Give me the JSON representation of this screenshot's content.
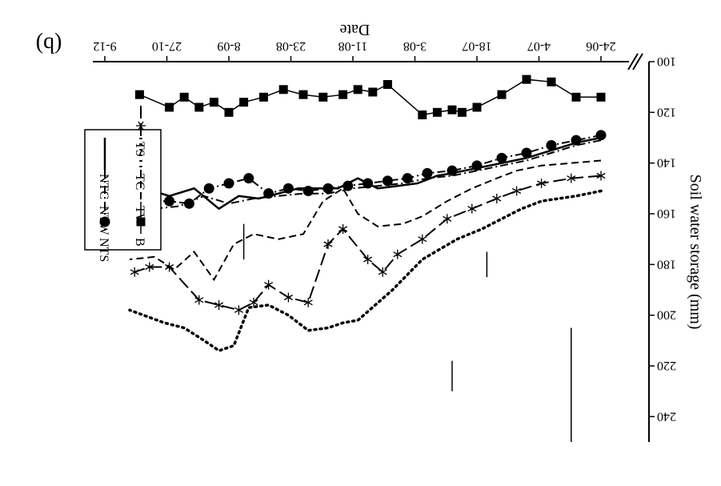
{
  "chart_data": {
    "type": "line",
    "title": "",
    "panel_label": "(b)",
    "xlabel": "Date",
    "ylabel": "Soil water storage (mm)",
    "x_ticks": [
      "24-06",
      "4-07",
      "18-07",
      "3-08",
      "11-08",
      "23-08",
      "8-09",
      "27-10",
      "9-12"
    ],
    "y_ticks": [
      "100",
      "120",
      "140",
      "160",
      "180",
      "200",
      "220",
      "240"
    ],
    "ylim": [
      100,
      250
    ],
    "x_axis_break": true,
    "grid": false,
    "legend_position": "top-left",
    "legend": [
      "B",
      "TW",
      "TC",
      "TS",
      "NTS",
      "NTW",
      "NTC"
    ],
    "series": [
      {
        "name": "TC",
        "style": "dotted",
        "x": [
          0.0,
          0.05,
          0.12,
          0.16,
          0.2,
          0.24,
          0.29,
          0.36,
          0.42,
          0.49,
          0.52,
          0.55,
          0.59,
          0.63,
          0.67,
          0.71,
          0.74,
          0.77,
          0.8,
          0.84,
          0.88,
          0.95
        ],
        "y": [
          151,
          153,
          155,
          158,
          162,
          166,
          170,
          178,
          190,
          202,
          203,
          205,
          206,
          200,
          196,
          197,
          212,
          214,
          210,
          205,
          203,
          198
        ]
      },
      {
        "name": "TS",
        "style": "long-dash-asterisk",
        "x": [
          0.0,
          0.06,
          0.12,
          0.17,
          0.21,
          0.26,
          0.31,
          0.36,
          0.41,
          0.44,
          0.47,
          0.52,
          0.55,
          0.59,
          0.63,
          0.67,
          0.7,
          0.73,
          0.77,
          0.81,
          0.87,
          0.91,
          0.94
        ],
        "y": [
          145,
          146,
          148,
          151,
          154,
          158,
          162,
          170,
          176,
          183,
          178,
          166,
          172,
          195,
          193,
          188,
          195,
          198,
          196,
          194,
          181,
          181,
          183
        ]
      },
      {
        "name": "TW",
        "style": "dashed",
        "x": [
          0.0,
          0.06,
          0.12,
          0.17,
          0.21,
          0.26,
          0.31,
          0.36,
          0.4,
          0.45,
          0.49,
          0.52,
          0.56,
          0.6,
          0.65,
          0.7,
          0.74,
          0.78,
          0.82,
          0.86,
          0.9,
          0.95
        ],
        "y": [
          139,
          140,
          141,
          143,
          146,
          150,
          155,
          161,
          164,
          165,
          160,
          150,
          155,
          168,
          170,
          168,
          172,
          186,
          175,
          182,
          177,
          178
        ]
      },
      {
        "name": "NTC",
        "style": "solid",
        "x": [
          0.0,
          0.05,
          0.1,
          0.15,
          0.2,
          0.25,
          0.3,
          0.33,
          0.37,
          0.41,
          0.45,
          0.49,
          0.53,
          0.57,
          0.61,
          0.65,
          0.69,
          0.73,
          0.77,
          0.82,
          0.87,
          0.92,
          0.95
        ],
        "y": [
          130,
          132,
          135,
          138,
          140,
          142,
          144,
          145,
          148,
          149,
          150,
          146,
          150,
          150,
          150,
          152,
          154,
          153,
          158,
          150,
          153,
          150,
          151
        ]
      },
      {
        "name": "NTW",
        "style": "dash-dot",
        "x": [
          0.0,
          0.05,
          0.1,
          0.15,
          0.2,
          0.25,
          0.3,
          0.35,
          0.4,
          0.45,
          0.5,
          0.55,
          0.6,
          0.65,
          0.7,
          0.75,
          0.8,
          0.85,
          0.9,
          0.95
        ],
        "y": [
          131,
          133,
          136,
          139,
          141,
          143,
          145,
          146,
          148,
          149,
          150,
          152,
          152,
          153,
          154,
          156,
          153,
          157,
          158,
          155
        ]
      },
      {
        "name": "NTS",
        "style": "dash-dot-circle",
        "x": [
          0.0,
          0.05,
          0.1,
          0.15,
          0.2,
          0.25,
          0.3,
          0.35,
          0.39,
          0.43,
          0.47,
          0.51,
          0.55,
          0.59,
          0.63,
          0.67,
          0.71,
          0.75,
          0.79,
          0.83,
          0.87,
          0.91,
          0.95
        ],
        "y": [
          129,
          131,
          133,
          136,
          138,
          141,
          143,
          144,
          146,
          147,
          148,
          149,
          150,
          151,
          150,
          152,
          146,
          148,
          150,
          156,
          155,
          155,
          150
        ]
      },
      {
        "name": "B",
        "style": "solid-square",
        "x": [
          0.0,
          0.05,
          0.1,
          0.15,
          0.2,
          0.25,
          0.28,
          0.3,
          0.33,
          0.36,
          0.43,
          0.46,
          0.49,
          0.52,
          0.56,
          0.6,
          0.64,
          0.68,
          0.72,
          0.75,
          0.78,
          0.81,
          0.84,
          0.87,
          0.93
        ],
        "y": [
          114,
          114,
          108,
          107,
          113,
          118,
          120,
          119,
          120,
          121,
          109,
          112,
          111,
          113,
          114,
          113,
          111,
          114,
          116,
          120,
          116,
          118,
          114,
          118,
          113
        ]
      }
    ]
  }
}
